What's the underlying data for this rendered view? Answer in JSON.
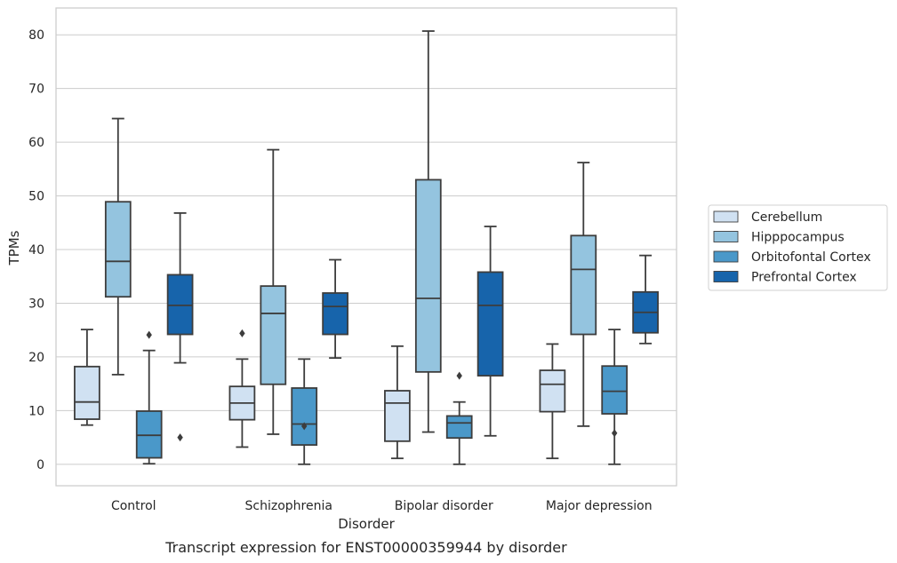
{
  "caption": "Transcript expression for ENST00000359944 by disorder",
  "chart_data": {
    "type": "box",
    "title": "",
    "xlabel": "Disorder",
    "ylabel": "TPMs",
    "ylim": [
      -4,
      85
    ],
    "yticks": [
      0,
      10,
      20,
      30,
      40,
      50,
      60,
      70,
      80
    ],
    "grid": true,
    "legend_position": "center-right",
    "categories": [
      "Control",
      "Schizophrenia",
      "Bipolar disorder",
      "Major depression"
    ],
    "series": [
      {
        "name": "Cerebellum",
        "color": "#d0e1f2",
        "boxes": [
          {
            "whislo": 7.3,
            "q1": 8.4,
            "med": 11.6,
            "q3": 18.2,
            "whishi": 25.1,
            "fliers": []
          },
          {
            "whislo": 3.2,
            "q1": 8.3,
            "med": 11.4,
            "q3": 14.5,
            "whishi": 19.6,
            "fliers": [
              24.4
            ]
          },
          {
            "whislo": 1.1,
            "q1": 4.3,
            "med": 11.4,
            "q3": 13.7,
            "whishi": 22.0,
            "fliers": []
          },
          {
            "whislo": 1.1,
            "q1": 9.8,
            "med": 14.9,
            "q3": 17.5,
            "whishi": 22.4,
            "fliers": []
          }
        ]
      },
      {
        "name": "Hipppocampus",
        "color": "#94c4df",
        "boxes": [
          {
            "whislo": 16.7,
            "q1": 31.2,
            "med": 37.8,
            "q3": 48.9,
            "whishi": 64.4,
            "fliers": []
          },
          {
            "whislo": 5.6,
            "q1": 14.9,
            "med": 28.1,
            "q3": 33.2,
            "whishi": 58.6,
            "fliers": []
          },
          {
            "whislo": 6.0,
            "q1": 17.2,
            "med": 30.9,
            "q3": 53.0,
            "whishi": 80.7,
            "fliers": []
          },
          {
            "whislo": 7.1,
            "q1": 24.2,
            "med": 36.3,
            "q3": 42.6,
            "whishi": 56.2,
            "fliers": []
          }
        ]
      },
      {
        "name": "Orbitofontal Cortex",
        "color": "#4a98c9",
        "boxes": [
          {
            "whislo": 0.1,
            "q1": 1.2,
            "med": 5.4,
            "q3": 9.9,
            "whishi": 21.2,
            "fliers": [
              24.1
            ]
          },
          {
            "whislo": 0.0,
            "q1": 3.6,
            "med": 7.5,
            "q3": 14.2,
            "whishi": 19.6,
            "fliers": [
              7.1
            ]
          },
          {
            "whislo": 0.0,
            "q1": 4.9,
            "med": 7.7,
            "q3": 9.0,
            "whishi": 11.6,
            "fliers": [
              16.5
            ]
          },
          {
            "whislo": 0.0,
            "q1": 9.4,
            "med": 13.6,
            "q3": 18.3,
            "whishi": 25.1,
            "fliers": [
              5.8
            ]
          }
        ]
      },
      {
        "name": "Prefrontal Cortex",
        "color": "#1764ab",
        "boxes": [
          {
            "whislo": 18.9,
            "q1": 24.2,
            "med": 29.6,
            "q3": 35.3,
            "whishi": 46.8,
            "fliers": [
              5.0
            ]
          },
          {
            "whislo": 19.8,
            "q1": 24.2,
            "med": 29.4,
            "q3": 31.9,
            "whishi": 38.1,
            "fliers": []
          },
          {
            "whislo": 5.3,
            "q1": 16.5,
            "med": 29.6,
            "q3": 35.8,
            "whishi": 44.3,
            "fliers": []
          },
          {
            "whislo": 22.5,
            "q1": 24.5,
            "med": 28.3,
            "q3": 32.1,
            "whishi": 38.9,
            "fliers": []
          }
        ]
      }
    ]
  }
}
